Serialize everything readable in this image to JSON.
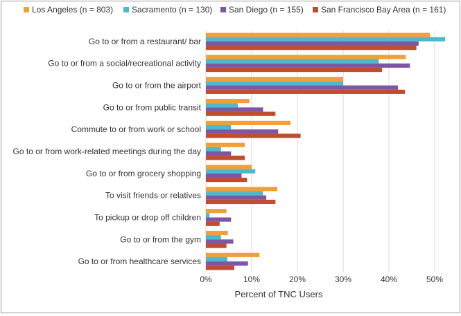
{
  "chart_data": {
    "type": "bar",
    "orientation": "horizontal",
    "title": "",
    "xlabel": "Percent of TNC Users",
    "ylabel": "",
    "xlim": [
      0,
      0.5
    ],
    "x_ticks": [
      "0%",
      "10%",
      "20%",
      "30%",
      "40%",
      "50%"
    ],
    "grid": true,
    "legend_position": "top",
    "categories": [
      "Go to or from a restaurant/ bar",
      "Go to or from a social/recreational activity",
      "Go to or from the airport",
      "Go to or from public transit",
      "Commute to or from work or school",
      "Go to or from work-related meetings during the day",
      "Go to or from grocery shopping",
      "To visit friends or relatives",
      "To pickup or drop off children",
      "Go to or from the gym",
      "Go to or from healthcare services"
    ],
    "series": [
      {
        "name": "Los Angeles (n = 803)",
        "color": "#F0A03A",
        "values": [
          0.49,
          0.437,
          0.3,
          0.095,
          0.185,
          0.085,
          0.1,
          0.156,
          0.045,
          0.048,
          0.117
        ]
      },
      {
        "name": "Sacramento (n = 130)",
        "color": "#4FB9CC",
        "values": [
          0.523,
          0.378,
          0.3,
          0.07,
          0.055,
          0.033,
          0.108,
          0.125,
          0.008,
          0.033,
          0.047
        ]
      },
      {
        "name": "San Diego (n = 155)",
        "color": "#7E56A4",
        "values": [
          0.465,
          0.446,
          0.42,
          0.125,
          0.158,
          0.055,
          0.078,
          0.132,
          0.055,
          0.06,
          0.092
        ]
      },
      {
        "name": "San Francisco Bay Area (n = 161)",
        "color": "#BF4D2E",
        "values": [
          0.46,
          0.385,
          0.435,
          0.152,
          0.207,
          0.085,
          0.09,
          0.152,
          0.03,
          0.045,
          0.062
        ]
      }
    ]
  }
}
